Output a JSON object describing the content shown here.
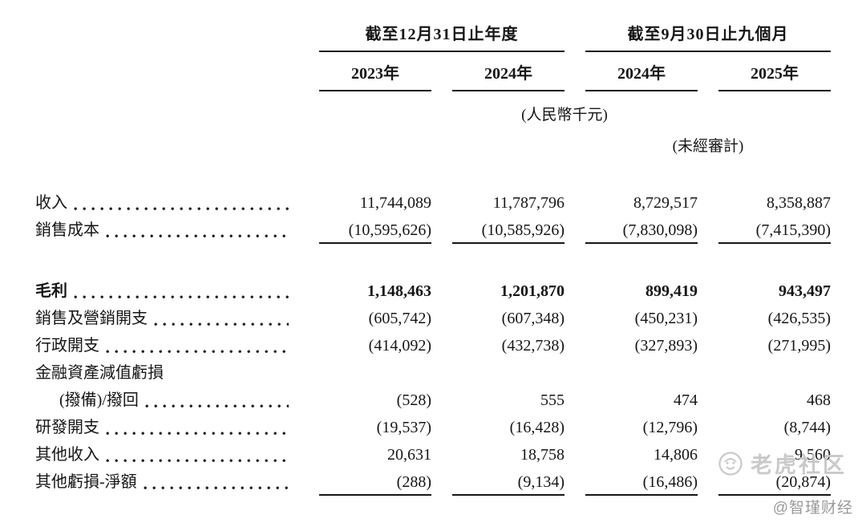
{
  "table": {
    "col_groups": [
      {
        "label": "截至12月31日止年度",
        "years": [
          "2023年",
          "2024年"
        ]
      },
      {
        "label": "截至9月30日止九個月",
        "years": [
          "2024年",
          "2025年"
        ]
      }
    ],
    "unit_note": "(人民幣千元)",
    "audit_note": "(未經審計)",
    "rows": [
      {
        "label": "收入",
        "values": [
          "11,744,089",
          "11,787,796",
          "8,729,517",
          "8,358,887"
        ]
      },
      {
        "label": "銷售成本",
        "values": [
          "(10,595,626)",
          "(10,585,926)",
          "(7,830,098)",
          "(7,415,390)"
        ],
        "rule_below": true
      },
      {
        "label": "毛利",
        "values": [
          "1,148,463",
          "1,201,870",
          "899,419",
          "943,497"
        ],
        "bold": true,
        "gap_before": true
      },
      {
        "label": "銷售及營銷開支",
        "values": [
          "(605,742)",
          "(607,348)",
          "(450,231)",
          "(426,535)"
        ]
      },
      {
        "label": "行政開支",
        "values": [
          "(414,092)",
          "(432,738)",
          "(327,893)",
          "(271,995)"
        ]
      },
      {
        "label": "金融資產減值虧損",
        "values": null
      },
      {
        "label": "(撥備)/撥回",
        "values": [
          "(528)",
          "555",
          "474",
          "468"
        ],
        "indent": true
      },
      {
        "label": "研發開支",
        "values": [
          "(19,537)",
          "(16,428)",
          "(12,796)",
          "(8,744)"
        ]
      },
      {
        "label": "其他收入",
        "values": [
          "20,631",
          "18,758",
          "14,806",
          "9,560"
        ]
      },
      {
        "label": "其他虧損-淨額",
        "values": [
          "(288)",
          "(9,134)",
          "(16,486)",
          "(20,874)"
        ],
        "rule_below": true
      }
    ]
  },
  "watermarks": {
    "community": "老虎社区",
    "credit": "@智瑾财经"
  }
}
